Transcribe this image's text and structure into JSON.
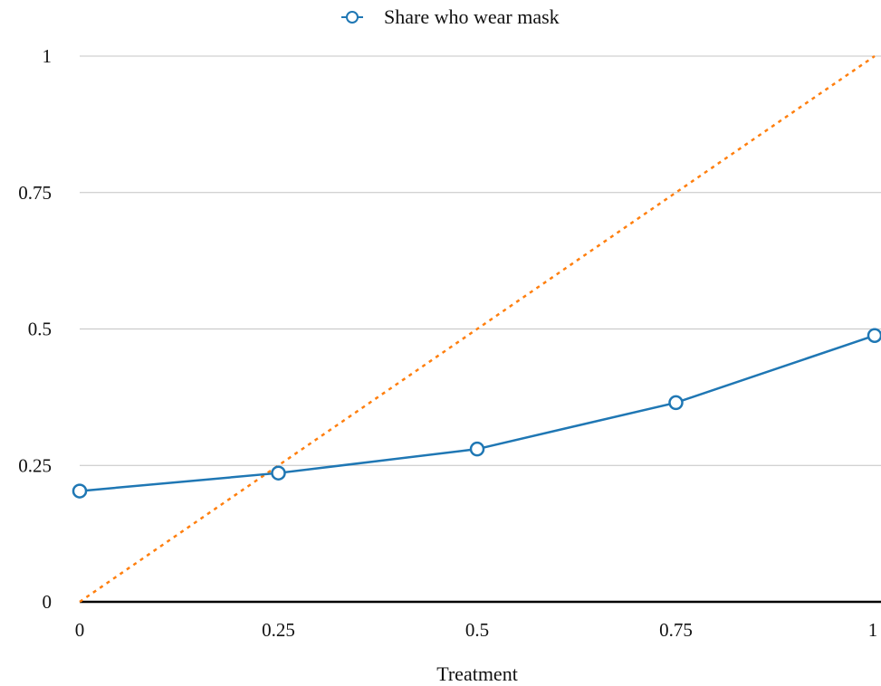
{
  "chart_data": {
    "type": "line",
    "title": "",
    "xlabel": "Treatment",
    "ylabel": "",
    "xlim": [
      0,
      1
    ],
    "ylim": [
      0,
      1
    ],
    "grid": true,
    "legend_position": "top-center",
    "x_ticks": [
      "0",
      "0.25",
      "0.5",
      "0.75",
      "1"
    ],
    "y_ticks": [
      "0",
      "0.25",
      "0.5",
      "0.75",
      "1"
    ],
    "series": [
      {
        "name": "Share who wear mask",
        "color": "#1f77b4",
        "marker": "hollow-circle",
        "line_style": "solid",
        "x": [
          0,
          0.25,
          0.5,
          0.75,
          1
        ],
        "y": [
          0.203,
          0.236,
          0.28,
          0.365,
          0.488
        ]
      },
      {
        "color": "#ff7f0e",
        "marker": "none",
        "line_style": "dotted",
        "x": [
          0,
          1
        ],
        "y": [
          0,
          1
        ]
      }
    ]
  }
}
